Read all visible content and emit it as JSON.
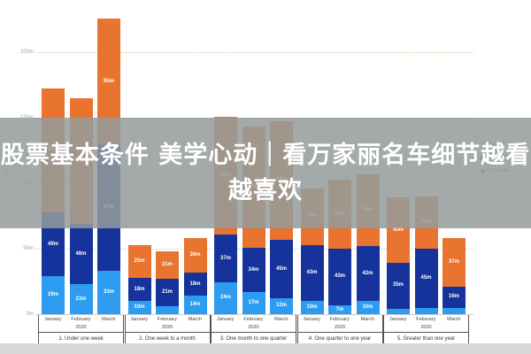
{
  "overlay": {
    "line1": "股票基本条件 美学心动｜看万家丽名车细节越看",
    "line2": "越喜欢"
  },
  "legend": {
    "title": "(Nominal Currency)",
    "items": [
      {
        "label": "UK Sterling",
        "color": "#16339b"
      },
      {
        "label": "US Dollar",
        "color": "#e87430"
      }
    ]
  },
  "chart_data": {
    "type": "bar",
    "stacked": true,
    "title": "",
    "xlabel": "",
    "ylabel": "£ (m)",
    "ylim": [
      0,
      235
    ],
    "grid": "dotted-horizontal",
    "legend_position": "right",
    "yticks": [
      {
        "label": "0m",
        "value": 0
      },
      {
        "label": "50m",
        "value": 50
      },
      {
        "label": "100m",
        "value": 100
      },
      {
        "label": "150m",
        "value": 150
      },
      {
        "label": "200m",
        "value": 200
      }
    ],
    "series": [
      {
        "key": "light",
        "name": "",
        "color": "#2d9cf0"
      },
      {
        "key": "dark",
        "name": "UK Sterling",
        "color": "#16339b"
      },
      {
        "key": "orange",
        "name": "US Dollar",
        "color": "#e87430"
      }
    ],
    "unit": "m",
    "groups": [
      {
        "label": "1. Under one week",
        "year": "2020",
        "bars": [
          {
            "month": "January",
            "values": [
              29,
              49,
              94
            ]
          },
          {
            "month": "February",
            "values": [
              23,
              46,
              96
            ]
          },
          {
            "month": "March",
            "values": [
              33,
              97,
              96
            ]
          }
        ]
      },
      {
        "label": "2. One week to a month",
        "year": "2020",
        "bars": [
          {
            "month": "January",
            "values": [
              10,
              18,
              25
            ]
          },
          {
            "month": "February",
            "values": [
              6,
              21,
              21
            ]
          },
          {
            "month": "March",
            "values": [
              14,
              18,
              26
            ]
          }
        ]
      },
      {
        "label": "3. One month to one quarter",
        "year": "2020",
        "bars": [
          {
            "month": "January",
            "values": [
              24,
              37,
              90
            ]
          },
          {
            "month": "February",
            "values": [
              17,
              34,
              92
            ]
          },
          {
            "month": "March",
            "values": [
              12,
              45,
              90
            ]
          }
        ]
      },
      {
        "label": "4. One quarter to one year",
        "year": "2020",
        "bars": [
          {
            "month": "January",
            "values": [
              10,
              43,
              43
            ]
          },
          {
            "month": "February",
            "values": [
              7,
              43,
              53
            ]
          },
          {
            "month": "March",
            "values": [
              10,
              42,
              55
            ]
          }
        ]
      },
      {
        "label": "5. Greater than one year",
        "year": "2020",
        "bars": [
          {
            "month": "January",
            "values": [
              4,
              35,
              50
            ]
          },
          {
            "month": "February",
            "values": [
              5,
              45,
              40
            ]
          },
          {
            "month": "March",
            "values": [
              5,
              16,
              37
            ]
          }
        ]
      }
    ]
  }
}
